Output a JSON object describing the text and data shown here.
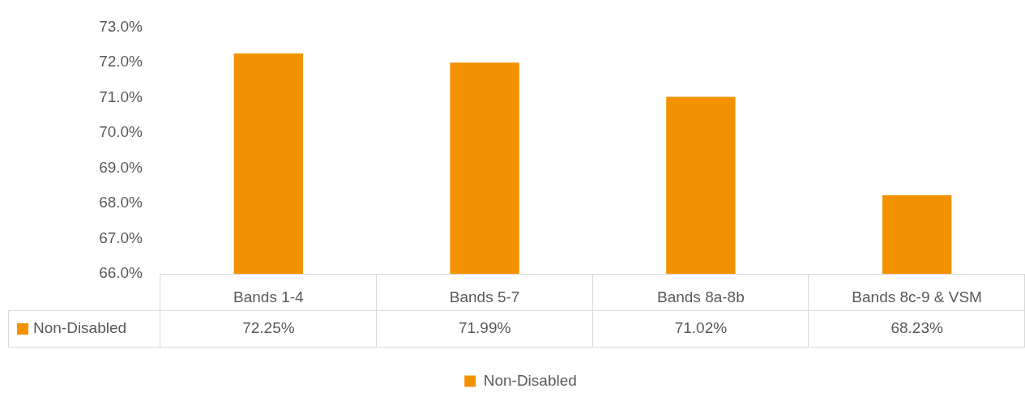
{
  "chart_data": {
    "type": "bar",
    "categories": [
      "Bands 1-4",
      "Bands 5-7",
      "Bands 8a-8b",
      "Bands 8c-9 & VSM"
    ],
    "series": [
      {
        "name": "Non-Disabled",
        "color": "#f39200",
        "values": [
          72.25,
          71.99,
          71.02,
          68.23
        ],
        "value_labels": [
          "72.25%",
          "71.99%",
          "71.02%",
          "68.23%"
        ]
      }
    ],
    "ylim": [
      66,
      73
    ],
    "yticks": [
      {
        "value": 66,
        "label": "66.0%"
      },
      {
        "value": 67,
        "label": "67.0%"
      },
      {
        "value": 68,
        "label": "68.0%"
      },
      {
        "value": 69,
        "label": "69.0%"
      },
      {
        "value": 70,
        "label": "70.0%"
      },
      {
        "value": 71,
        "label": "71.0%"
      },
      {
        "value": 72,
        "label": "72.0%"
      },
      {
        "value": 73,
        "label": "73.0%"
      }
    ],
    "grid": false,
    "legend": "bottom"
  }
}
